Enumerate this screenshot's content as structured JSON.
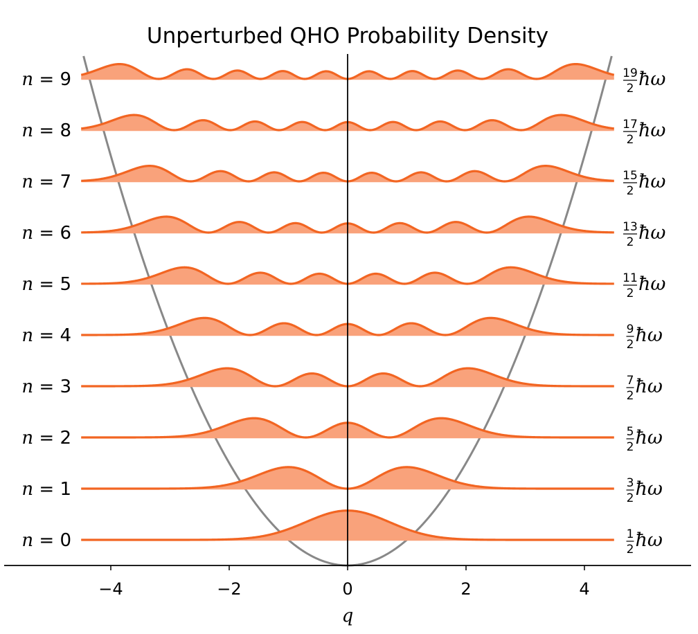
{
  "chart_data": {
    "type": "line",
    "title": "Unperturbed QHO Probability Density",
    "xlabel": "q",
    "ylabel": "",
    "xlim": [
      -5.75,
      5.75
    ],
    "x_range_of_curves": [
      -4.5,
      4.5
    ],
    "xticks": [
      -4,
      -2,
      0,
      2,
      4
    ],
    "xtick_labels": [
      "−4",
      "−2",
      "0",
      "2",
      "4"
    ],
    "potential": {
      "form": "V(q) = q²/2",
      "color": "#888888"
    },
    "levels": [
      {
        "n": 0,
        "label_lhs": "n",
        "label_rhs": "0",
        "energy_num": "1",
        "energy_den": "2",
        "energy_unit": "ħω"
      },
      {
        "n": 1,
        "label_lhs": "n",
        "label_rhs": "1",
        "energy_num": "3",
        "energy_den": "2",
        "energy_unit": "ħω"
      },
      {
        "n": 2,
        "label_lhs": "n",
        "label_rhs": "2",
        "energy_num": "5",
        "energy_den": "2",
        "energy_unit": "ħω"
      },
      {
        "n": 3,
        "label_lhs": "n",
        "label_rhs": "3",
        "energy_num": "7",
        "energy_den": "2",
        "energy_unit": "ħω"
      },
      {
        "n": 4,
        "label_lhs": "n",
        "label_rhs": "4",
        "energy_num": "9",
        "energy_den": "2",
        "energy_unit": "ħω"
      },
      {
        "n": 5,
        "label_lhs": "n",
        "label_rhs": "5",
        "energy_num": "11",
        "energy_den": "2",
        "energy_unit": "ħω"
      },
      {
        "n": 6,
        "label_lhs": "n",
        "label_rhs": "6",
        "energy_num": "13",
        "energy_den": "2",
        "energy_unit": "ħω"
      },
      {
        "n": 7,
        "label_lhs": "n",
        "label_rhs": "7",
        "energy_num": "15",
        "energy_den": "2",
        "energy_unit": "ħω"
      },
      {
        "n": 8,
        "label_lhs": "n",
        "label_rhs": "8",
        "energy_num": "17",
        "energy_den": "2",
        "energy_unit": "ħω"
      },
      {
        "n": 9,
        "label_lhs": "n",
        "label_rhs": "9",
        "energy_num": "19",
        "energy_den": "2",
        "energy_unit": "ħω"
      }
    ],
    "density_form": "|ψ_n(q)|², ψ_n(q) = H_n(q)·exp(−q²/2)/√(2ⁿ n! √π)",
    "colors": {
      "curve": "#f26522",
      "fill": "#f9a27b",
      "axis": "#000000"
    },
    "grid": false,
    "legend": "none"
  }
}
